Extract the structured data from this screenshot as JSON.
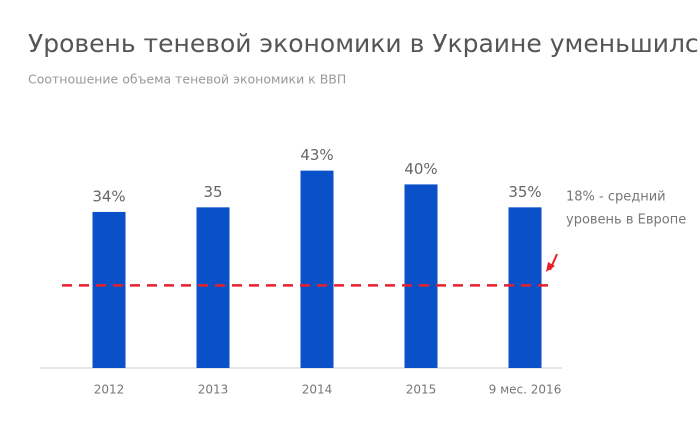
{
  "chart_data": {
    "type": "bar",
    "title": "Уровень теневой экономики в Украине уменьшился",
    "subtitle": "Соотношение объема теневой экономики к ВВП",
    "categories": [
      "2012",
      "2013",
      "2014",
      "2015",
      "9 мес. 2016"
    ],
    "values": [
      34,
      35,
      43,
      40,
      35
    ],
    "value_labels": [
      "34%",
      "35",
      "43%",
      "40%",
      "35%"
    ],
    "color": "#0a50c8",
    "ylim": [
      0,
      50
    ],
    "reference_line": {
      "value": 18,
      "color": "#e8202a",
      "label": [
        "18% - средний",
        "уровень в Европе"
      ]
    }
  }
}
